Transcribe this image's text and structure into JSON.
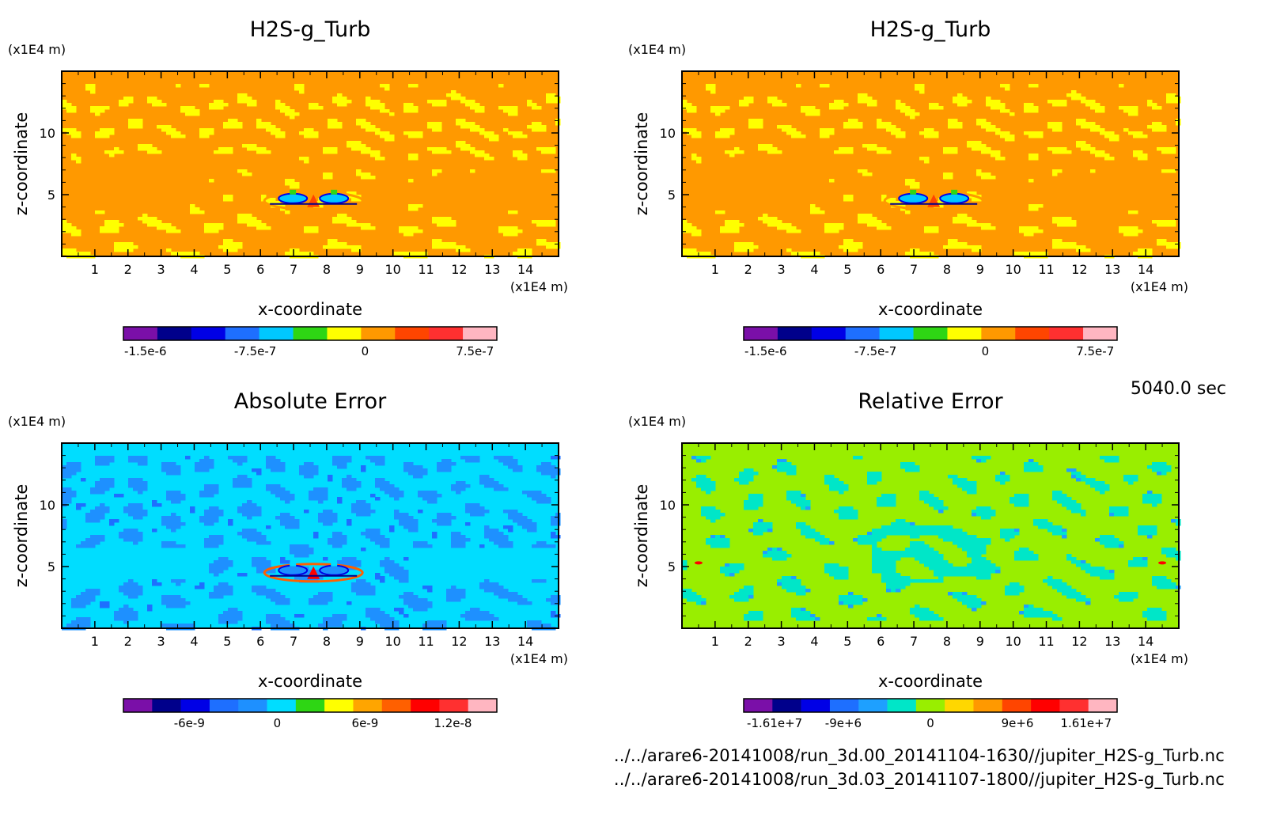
{
  "time_label": "5040.0 sec",
  "files": [
    "../../arare6-20141008/run_3d.00_20141104-1630//jupiter_H2S-g_Turb.nc",
    "../../arare6-20141008/run_3d.03_20141107-1800//jupiter_H2S-g_Turb.nc"
  ],
  "chart_data": [
    {
      "type": "heatmap",
      "title": "H2S-g_Turb",
      "xlabel": "x-coordinate",
      "ylabel": "z-coordinate",
      "x_unit": "(x1E4 m)",
      "y_unit": "(x1E4 m)",
      "xlim": [
        0,
        15
      ],
      "ylim": [
        0,
        15
      ],
      "x_ticks": [
        "1",
        "2",
        "3",
        "4",
        "5",
        "6",
        "7",
        "8",
        "9",
        "10",
        "11",
        "12",
        "13",
        "14"
      ],
      "y_ticks": [
        "5",
        "10"
      ],
      "background_color": "#ff9900",
      "pattern": "field",
      "colorbar": {
        "colors": [
          "#7a0fa8",
          "#00008b",
          "#0000e6",
          "#1e6fff",
          "#00c8ff",
          "#2ed614",
          "#ffff00",
          "#ff9900",
          "#ff4500",
          "#ff3030",
          "#ffb6c1"
        ],
        "tick_labels": [
          "-1.5e-6",
          "-7.5e-7",
          "0",
          "7.5e-7"
        ],
        "tick_values": [
          -1.5e-06,
          -7.5e-07,
          0,
          7.5e-07
        ],
        "range": [
          -1.65e-06,
          9e-07
        ]
      }
    },
    {
      "type": "heatmap",
      "title": "H2S-g_Turb",
      "xlabel": "x-coordinate",
      "ylabel": "z-coordinate",
      "x_unit": "(x1E4 m)",
      "y_unit": "(x1E4 m)",
      "xlim": [
        0,
        15
      ],
      "ylim": [
        0,
        15
      ],
      "x_ticks": [
        "1",
        "2",
        "3",
        "4",
        "5",
        "6",
        "7",
        "8",
        "9",
        "10",
        "11",
        "12",
        "13",
        "14"
      ],
      "y_ticks": [
        "5",
        "10"
      ],
      "background_color": "#ff9900",
      "pattern": "field",
      "colorbar": {
        "colors": [
          "#7a0fa8",
          "#00008b",
          "#0000e6",
          "#1e6fff",
          "#00c8ff",
          "#2ed614",
          "#ffff00",
          "#ff9900",
          "#ff4500",
          "#ff3030",
          "#ffb6c1"
        ],
        "tick_labels": [
          "-1.5e-6",
          "-7.5e-7",
          "0",
          "7.5e-7"
        ],
        "tick_values": [
          -1.5e-06,
          -7.5e-07,
          0,
          7.5e-07
        ],
        "range": [
          -1.65e-06,
          9e-07
        ]
      }
    },
    {
      "type": "heatmap",
      "title": "Absolute Error",
      "xlabel": "x-coordinate",
      "ylabel": "z-coordinate",
      "x_unit": "(x1E4 m)",
      "y_unit": "(x1E4 m)",
      "xlim": [
        0,
        15
      ],
      "ylim": [
        0,
        15
      ],
      "x_ticks": [
        "1",
        "2",
        "3",
        "4",
        "5",
        "6",
        "7",
        "8",
        "9",
        "10",
        "11",
        "12",
        "13",
        "14"
      ],
      "y_ticks": [
        "5",
        "10"
      ],
      "background_color": "#00ddff",
      "pattern": "abs",
      "colorbar": {
        "colors": [
          "#7a0fa8",
          "#00008b",
          "#0000e6",
          "#1e6fff",
          "#1e90ff",
          "#00ddff",
          "#2ed614",
          "#ffff00",
          "#ffa500",
          "#ff6000",
          "#ff0000",
          "#ff3030",
          "#ffb6c1"
        ],
        "tick_labels": [
          "-6e-9",
          "0",
          "6e-9",
          "1.2e-8"
        ],
        "tick_values": [
          -6e-09,
          0,
          6e-09,
          1.2e-08
        ],
        "range": [
          -1.05e-08,
          1.5e-08
        ]
      }
    },
    {
      "type": "heatmap",
      "title": "Relative Error",
      "xlabel": "x-coordinate",
      "ylabel": "z-coordinate",
      "x_unit": "(x1E4 m)",
      "y_unit": "(x1E4 m)",
      "xlim": [
        0,
        15
      ],
      "ylim": [
        0,
        15
      ],
      "x_ticks": [
        "1",
        "2",
        "3",
        "4",
        "5",
        "6",
        "7",
        "8",
        "9",
        "10",
        "11",
        "12",
        "13",
        "14"
      ],
      "y_ticks": [
        "5",
        "10"
      ],
      "background_color": "#99ee00",
      "pattern": "rel",
      "colorbar": {
        "colors": [
          "#7a0fa8",
          "#00008b",
          "#0000e6",
          "#1e6fff",
          "#1ea0ff",
          "#00e6c8",
          "#99ee00",
          "#ffd700",
          "#ff9900",
          "#ff4500",
          "#ff0000",
          "#ff3030",
          "#ffb6c1"
        ],
        "tick_labels": [
          "-1.61e+7",
          "-9e+6",
          "0",
          "9e+6",
          "1.61e+7"
        ],
        "tick_values": [
          -16100000.0,
          -9000000.0,
          0,
          9000000.0,
          16100000.0
        ],
        "range": [
          -19300000.0,
          19300000.0
        ]
      }
    }
  ]
}
